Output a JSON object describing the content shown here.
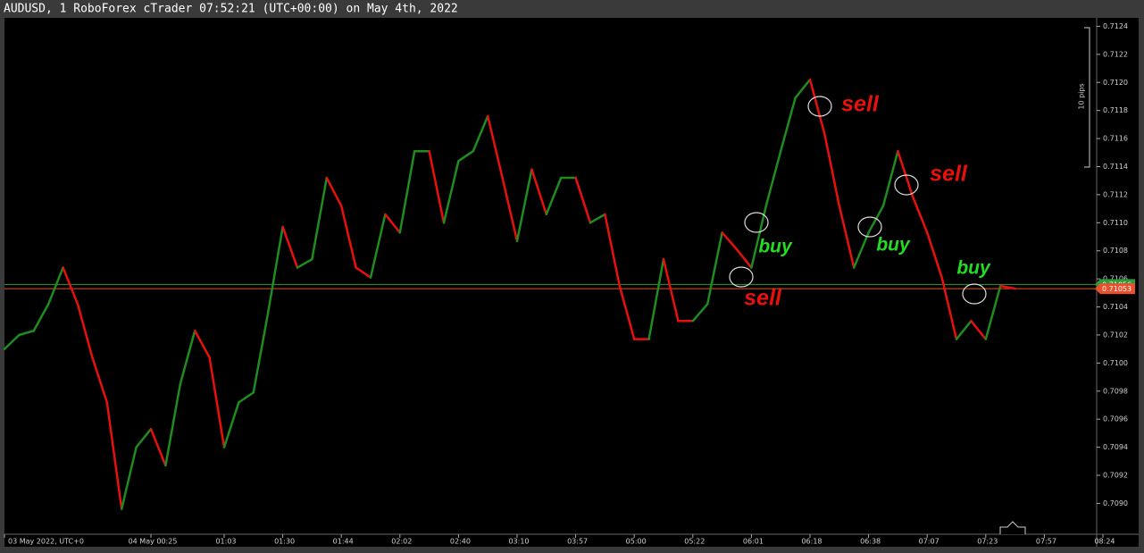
{
  "chart_data": {
    "type": "line",
    "title": "AUDUSD, 1 RoboForex cTrader 07:52:21 (UTC+00:00) on May 4th, 2022",
    "categories": [
      "03 May 2022, UTC+0",
      null,
      null,
      null,
      null,
      null,
      null,
      null,
      null,
      null,
      "04 May 00:25",
      null,
      null,
      null,
      null,
      "01:03",
      null,
      null,
      null,
      "01:30",
      null,
      null,
      null,
      "01:44",
      null,
      null,
      null,
      "02:02",
      null,
      null,
      null,
      "02:40",
      null,
      null,
      null,
      "03:10",
      null,
      null,
      null,
      "03:57",
      null,
      null,
      null,
      "05:00",
      null,
      null,
      null,
      "05:22",
      null,
      null,
      null,
      "06:01",
      null,
      null,
      null,
      "06:18",
      null,
      null,
      null,
      "06:38",
      null,
      null,
      null,
      "07:07",
      null,
      null,
      null,
      "07:23",
      null,
      null,
      null,
      "07:57",
      null,
      null,
      null,
      "08:24"
    ],
    "series": [
      {
        "name": "AUDUSD",
        "up_color": "#1e8c1e",
        "down_color": "#e8100c",
        "values": [
          0.7101,
          0.7102,
          0.71023,
          0.71042,
          0.71068,
          0.71042,
          0.71004,
          0.70972,
          0.70896,
          0.7094,
          0.70953,
          0.70927,
          0.70985,
          0.71023,
          0.71004,
          0.7094,
          0.70972,
          0.70979,
          0.71036,
          0.71097,
          0.71068,
          0.71074,
          0.71132,
          0.71112,
          0.71068,
          0.71061,
          0.71106,
          0.71093,
          0.71151,
          0.71151,
          0.711,
          0.71144,
          0.71151,
          0.71176,
          0.71132,
          0.71087,
          0.71138,
          0.71106,
          0.71132,
          0.71132,
          0.711,
          0.71106,
          0.71055,
          0.71017,
          0.71017,
          0.71074,
          0.7103,
          0.7103,
          0.71042,
          0.71093,
          0.71081,
          0.71068,
          0.71112,
          0.71151,
          0.71189,
          0.71202,
          0.71163,
          0.71112,
          0.71068,
          0.71093,
          0.71112,
          0.71151,
          0.71119,
          0.71093,
          0.71061,
          0.71017,
          0.7103,
          0.71017,
          0.71055,
          0.71053,
          null,
          null,
          null,
          null,
          null,
          null
        ]
      }
    ],
    "ylim": [
      0.70878,
      0.71246
    ],
    "yticks": [
      {
        "value": 0.709,
        "label": "0.7090"
      },
      0.7092,
      0.7094,
      0.7096,
      0.7098,
      {
        "value": 0.71,
        "label": "0.7100"
      },
      0.7102,
      0.7104,
      0.7106,
      0.7108,
      {
        "value": 0.711,
        "label": "0.7110"
      },
      0.7112,
      0.7114,
      0.7116,
      0.7118,
      {
        "value": 0.712,
        "label": "0.7120"
      },
      0.7122,
      0.7124
    ],
    "price_lines": [
      {
        "value": 0.71056,
        "label": "0.71056",
        "color": "#2a9a3a"
      },
      {
        "value": 0.71053,
        "label": "0.71053",
        "color": "#e8502c"
      }
    ],
    "pips_label": "10 pips",
    "annotations": [
      {
        "text": "sell",
        "color": "#e8100c"
      },
      {
        "text": "buy",
        "color": "#22dd22"
      },
      {
        "text": "sell",
        "color": "#e8100c"
      },
      {
        "text": "buy",
        "color": "#22dd22"
      },
      {
        "text": "sell",
        "color": "#e8100c"
      },
      {
        "text": "buy",
        "color": "#22dd22"
      }
    ]
  }
}
